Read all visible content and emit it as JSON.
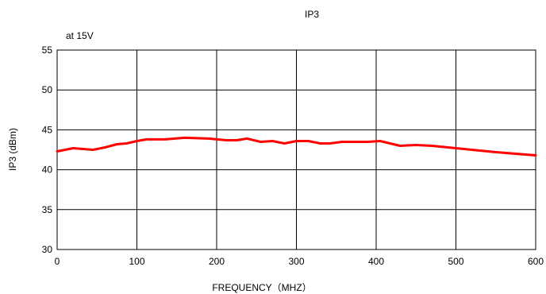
{
  "chart_data": {
    "type": "line",
    "title": "IP3",
    "subtitle": "at 15V",
    "xlabel": "FREQUENCY（MHZ）",
    "ylabel": "IP3 (dBm)",
    "xlim": [
      0,
      600
    ],
    "ylim": [
      30,
      55
    ],
    "xticks": [
      0,
      100,
      200,
      300,
      400,
      500,
      600
    ],
    "yticks": [
      30,
      35,
      40,
      45,
      50,
      55
    ],
    "grid": true,
    "series_color": "#ff0000",
    "series": [
      {
        "x": [
          0,
          20,
          45,
          60,
          75,
          87,
          100,
          112,
          135,
          160,
          190,
          212,
          225,
          238,
          255,
          270,
          285,
          300,
          315,
          330,
          342,
          357,
          375,
          390,
          405,
          430,
          450,
          470,
          500,
          550,
          600
        ],
        "values": [
          42.3,
          42.7,
          42.5,
          42.8,
          43.2,
          43.3,
          43.6,
          43.8,
          43.8,
          44.0,
          43.9,
          43.7,
          43.7,
          43.9,
          43.5,
          43.6,
          43.3,
          43.6,
          43.6,
          43.3,
          43.3,
          43.5,
          43.5,
          43.5,
          43.6,
          43.0,
          43.1,
          43.0,
          42.7,
          42.2,
          41.8
        ]
      }
    ]
  }
}
